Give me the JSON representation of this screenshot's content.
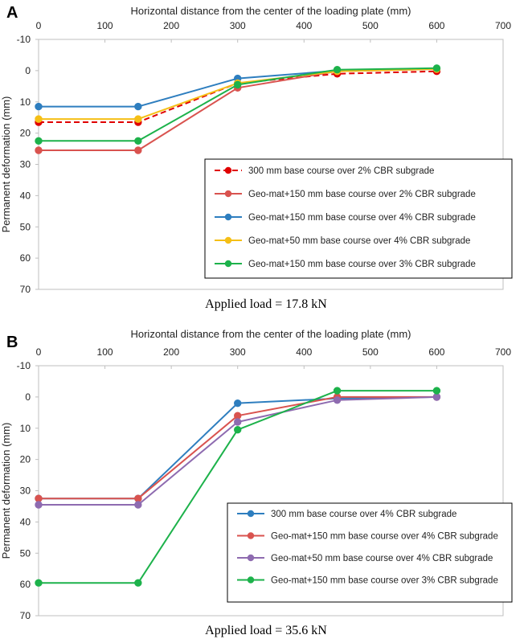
{
  "chart_data": [
    {
      "panel": "A",
      "type": "line",
      "title": "",
      "xlabel": "Horizontal distance from the center of the loading plate (mm)",
      "ylabel": "Permanent deformation (mm)",
      "xlim": [
        0,
        700
      ],
      "ylim": [
        -10,
        70
      ],
      "y_inverted": true,
      "xticks": [
        0,
        100,
        200,
        300,
        400,
        500,
        600,
        700
      ],
      "yticks": [
        -10,
        0,
        10,
        20,
        30,
        40,
        50,
        60,
        70
      ],
      "grid": false,
      "caption": "Applied load = 17.8 kN",
      "legend_position": "lower-right",
      "series": [
        {
          "name": "300 mm base course over 2% CBR subgrade",
          "color": "#e00000",
          "dashed": true,
          "x": [
            0,
            150,
            300,
            450,
            600
          ],
          "y": [
            16.5,
            16.5,
            4,
            1,
            0.2
          ]
        },
        {
          "name": "Geo-mat+150 mm base course over 2% CBR subgrade",
          "color": "#d9534f",
          "dashed": false,
          "x": [
            0,
            150,
            300,
            450,
            600
          ],
          "y": [
            25.5,
            25.5,
            5.5,
            0.2,
            -0.5
          ]
        },
        {
          "name": "Geo-mat+150 mm base course over 4% CBR subgrade",
          "color": "#2e7ebf",
          "dashed": false,
          "x": [
            0,
            150,
            300,
            450,
            600
          ],
          "y": [
            11.5,
            11.5,
            2.5,
            0,
            -0.5
          ]
        },
        {
          "name": "Geo-mat+50 mm base course over 4% CBR subgrade",
          "color": "#f5bf16",
          "dashed": false,
          "x": [
            0,
            150,
            300,
            450,
            600
          ],
          "y": [
            15.5,
            15.5,
            4,
            0.2,
            -0.5
          ]
        },
        {
          "name": "Geo-mat+150 mm base course over 3% CBR subgrade",
          "color": "#1db24b",
          "dashed": false,
          "x": [
            0,
            150,
            300,
            450,
            600
          ],
          "y": [
            22.5,
            22.5,
            4.5,
            -0.3,
            -0.8
          ]
        }
      ]
    },
    {
      "panel": "B",
      "type": "line",
      "title": "",
      "xlabel": "Horizontal distance from the center of the loading plate (mm)",
      "ylabel": "Permanent deformation (mm)",
      "xlim": [
        0,
        700
      ],
      "ylim": [
        -10,
        70
      ],
      "y_inverted": true,
      "xticks": [
        0,
        100,
        200,
        300,
        400,
        500,
        600,
        700
      ],
      "yticks": [
        -10,
        0,
        10,
        20,
        30,
        40,
        50,
        60,
        70
      ],
      "grid": false,
      "caption": "Applied load = 35.6 kN",
      "legend_position": "lower-right",
      "series": [
        {
          "name": "300 mm base course over 4% CBR subgrade",
          "color": "#2e7ebf",
          "dashed": false,
          "x": [
            0,
            150,
            300,
            450,
            600
          ],
          "y": [
            32.5,
            32.5,
            2,
            0.5,
            0
          ]
        },
        {
          "name": "Geo-mat+150 mm base course over 4% CBR subgrade",
          "color": "#d9534f",
          "dashed": false,
          "x": [
            0,
            150,
            300,
            450,
            600
          ],
          "y": [
            32.5,
            32.5,
            6,
            0,
            0
          ]
        },
        {
          "name": "Geo-mat+50 mm base course over 4% CBR subgrade",
          "color": "#8e6bb0",
          "dashed": false,
          "x": [
            0,
            150,
            300,
            450,
            600
          ],
          "y": [
            34.5,
            34.5,
            8,
            1,
            0
          ]
        },
        {
          "name": "Geo-mat+150 mm base course over 3% CBR subgrade",
          "color": "#1db24b",
          "dashed": false,
          "x": [
            0,
            150,
            300,
            450,
            600
          ],
          "y": [
            59.5,
            59.5,
            10.5,
            -2,
            -2
          ]
        }
      ]
    }
  ]
}
